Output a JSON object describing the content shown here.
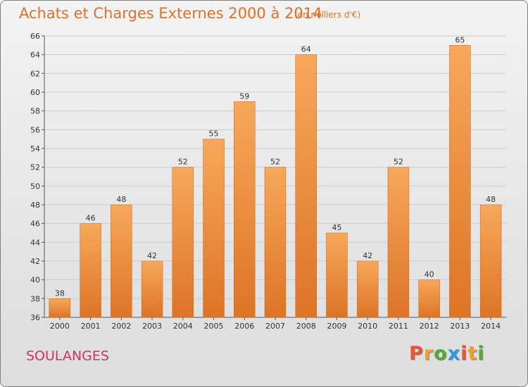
{
  "header": {
    "title": "Achats et Charges Externes 2000 à 2014",
    "unit": "(en milliers d'€)"
  },
  "footer": {
    "commune": "SOULANGES",
    "logo": [
      "P",
      "r",
      "o",
      "x",
      "i",
      "t",
      "i"
    ],
    "logo_colors": [
      "#e8563a",
      "#f0a030",
      "#55aa33",
      "#3399dd",
      "#e8563a",
      "#f0a030",
      "#55aa33"
    ]
  },
  "colors": {
    "bar_light": "#f7a85a",
    "bar_dark": "#dd7426",
    "title": "#e0702a",
    "commune": "#cc3366",
    "grid": "#cccccc"
  },
  "chart_data": {
    "type": "bar",
    "title": "Achats et Charges Externes 2000 à 2014",
    "subtitle": "(en milliers d'€)",
    "categories": [
      "2000",
      "2001",
      "2002",
      "2003",
      "2004",
      "2005",
      "2006",
      "2007",
      "2008",
      "2009",
      "2010",
      "2011",
      "2012",
      "2013",
      "2014"
    ],
    "values": [
      38,
      46,
      48,
      42,
      52,
      55,
      59,
      52,
      64,
      45,
      42,
      52,
      40,
      65,
      48
    ],
    "ylim": [
      36,
      66
    ],
    "yticks": [
      36,
      38,
      40,
      42,
      44,
      46,
      48,
      50,
      52,
      54,
      56,
      58,
      60,
      62,
      64,
      66
    ],
    "grid": true,
    "xlabel": "",
    "ylabel": ""
  }
}
